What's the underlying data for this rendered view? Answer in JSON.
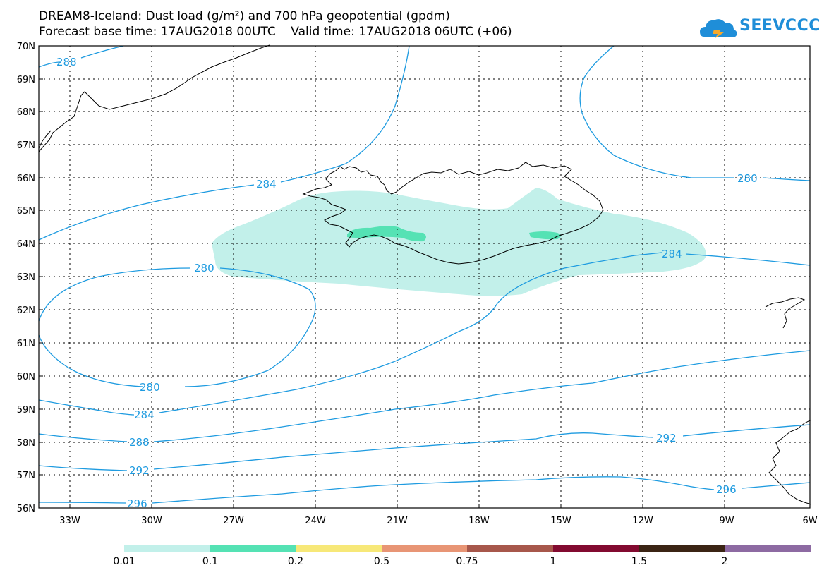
{
  "title": {
    "line1": "DREAM8-Iceland: Dust load (g/m²) and 700 hPa geopotential (gpdm)",
    "line2": "Forecast base time: 17AUG2018 00UTC    Valid time: 17AUG2018 06UTC (+06)"
  },
  "logo": {
    "text": "SEEVCCC",
    "icon": "cloud-logo-icon"
  },
  "axes": {
    "lat_labels": [
      "70N",
      "69N",
      "68N",
      "67N",
      "66N",
      "65N",
      "64N",
      "63N",
      "62N",
      "61N",
      "60N",
      "59N",
      "58N",
      "57N",
      "56N"
    ],
    "lon_labels": [
      "33W",
      "30W",
      "27W",
      "24W",
      "21W",
      "18W",
      "15W",
      "12W",
      "9W",
      "6W"
    ]
  },
  "contours": {
    "color": "#1e9be0",
    "labels": [
      "288",
      "284",
      "280",
      "280",
      "280",
      "284",
      "284",
      "288",
      "292",
      "292",
      "296",
      "296"
    ]
  },
  "dust_colors": {
    "light": "#c2f0ea",
    "medium": "#55e2b4"
  },
  "colorbar": {
    "colors": [
      "#c2f0ea",
      "#55e2b4",
      "#f7e878",
      "#e89575",
      "#a7574b",
      "#820a30",
      "#3b2414",
      "#8d6aa2"
    ],
    "labels": [
      "0.01",
      "0.1",
      "0.2",
      "0.5",
      "0.75",
      "1",
      "1.5",
      "2"
    ]
  }
}
